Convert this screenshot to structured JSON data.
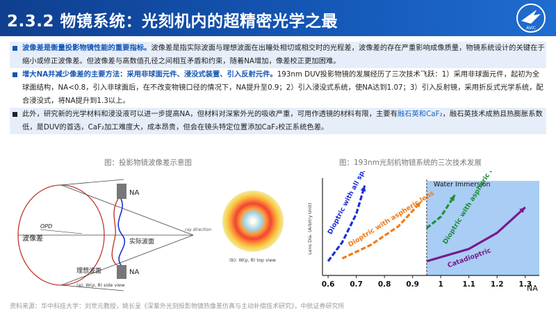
{
  "header": {
    "title": "2.3.2 物镜系统：光刻机内的超精密光学之最",
    "logo_label": "AVIC"
  },
  "paragraphs": [
    {
      "lead": "波像差是衡量投影物镜性能的重要指标。",
      "text": "波像差是指实际波面与理想波面在出瞳处相切或相交时的光程差，波像差的存在严重影响成像质量，物镜系统设计的关键在于缩小或修正波像差。但波像差与高数值孔径之间相互矛盾和约束，随着NA增加，像差校正更加困难。"
    },
    {
      "lead": "增大NA并减少像差的主要方法：采用非球面元件、浸没式装置、引入反射元件。",
      "text": "193nm DUV投影物镜的发展经历了三次技术飞跃：1）采用非球面元件，起初为全球面结构，NA<0.8，引入非球面后，在不改变物镜口径的情况下，NA提升至0.9；2）引入浸没式系统，使NA达到1.07；3）引入反射镜，采用折反式光学系统，配合浸没式，将NA提升到1.3以上。"
    },
    {
      "text_a": "此外，研究新的光学材料和浸没液可以进一步提高NA，但材料对深紫外光的吸收严重，可用作透镜的材料有限，主要有",
      "link": "融石英和CaF₂",
      "text_b": "，融石英技术成熟且热膨胀系数低，是DUV的首选，CaF₂加工难度大，成本昂贵，但会在镜头特定位置添加CaF₂校正系统色差。"
    }
  ],
  "captions": {
    "left": "图：投影物镜波像差示意图",
    "right": "图：193nm光刻机物镜系统的三次技术发展"
  },
  "wave_diagram": {
    "na_top": "NA",
    "na_bottom": "NA",
    "wave_label": "波像差",
    "opd": "OPD",
    "actual_wave": "实际波面",
    "ideal_wave": "理想波面",
    "ray_direction": "ray direction",
    "side_view": "(a): W(ρ, θ) side view",
    "top_view": "(b): W(ρ, θ) top view"
  },
  "chart_data": {
    "type": "line",
    "ylabel": "Lens Dia. (Arbitry Unit)",
    "xlabel": "NA",
    "xticks": [
      "0.6",
      "0.7",
      "0.8",
      "0.9",
      "1",
      "1.1",
      "1.2",
      "1.3"
    ],
    "xlim": [
      0.58,
      1.35
    ],
    "region_label": "Water Immersion",
    "region_start": 0.95,
    "series": [
      {
        "name": "Dioptric with all spheric lens",
        "color": "#1a2fd6",
        "x": [
          0.6,
          0.65,
          0.7,
          0.73
        ],
        "y": [
          0.15,
          0.35,
          0.65,
          0.95
        ]
      },
      {
        "name": "Dioptric with aspheric lens",
        "color": "#f07a1a",
        "x": [
          0.65,
          0.75,
          0.85,
          0.93
        ],
        "y": [
          0.18,
          0.32,
          0.52,
          0.78
        ]
      },
      {
        "name": "Dioptric with aspheric lens",
        "color": "#1f8f3a",
        "x": [
          0.95,
          1.0,
          1.05
        ],
        "y": [
          0.5,
          0.62,
          0.85
        ]
      },
      {
        "name": "Catadioptric",
        "color": "#7a1a8c",
        "x": [
          0.95,
          1.1,
          1.2,
          1.3
        ],
        "y": [
          0.15,
          0.28,
          0.45,
          0.72
        ]
      }
    ]
  },
  "footer": "资料来源：华中科技大学：刘世元教授，姚长呈《深紫外光刻投影物镜热像差仿真与主动补偿技术研究》，中航证券研究所"
}
